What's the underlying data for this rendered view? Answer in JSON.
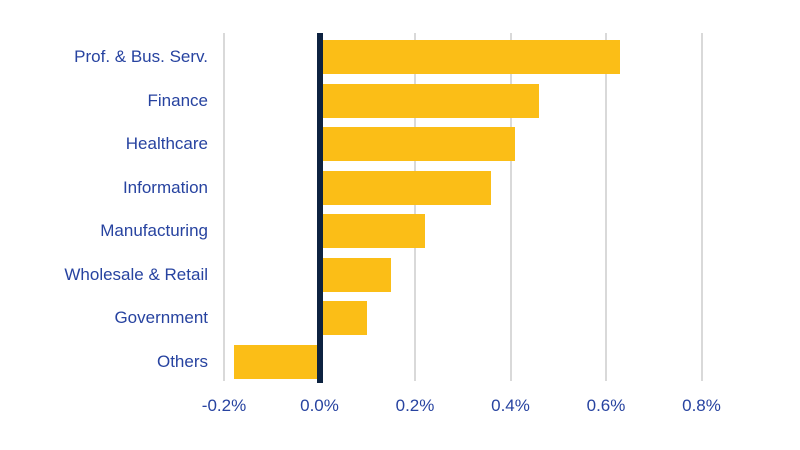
{
  "chart_data": {
    "type": "bar",
    "orientation": "horizontal",
    "title": "",
    "xlabel": "",
    "ylabel": "",
    "unit": "%",
    "categories": [
      "Prof. & Bus. Serv.",
      "Finance",
      "Healthcare",
      "Information",
      "Manufacturing",
      "Wholesale & Retail",
      "Government",
      "Others"
    ],
    "values": [
      0.63,
      0.46,
      0.41,
      0.36,
      0.22,
      0.15,
      0.1,
      -0.18
    ],
    "xlim": [
      -0.2,
      0.8
    ],
    "xticks": {
      "values": [
        -0.2,
        0.0,
        0.2,
        0.4,
        0.6,
        0.8
      ],
      "labels": [
        "-0.2%",
        "0.0%",
        "0.2%",
        "0.4%",
        "0.6%",
        "0.8%"
      ]
    },
    "grid": true,
    "legend": false,
    "zero_baseline": true,
    "colors": {
      "bar": "#FBBE17",
      "zero_line": "#0D2240",
      "gridline": "#D9D9D9",
      "label_text": "#2743A0",
      "background": "#FFFFFF"
    }
  }
}
